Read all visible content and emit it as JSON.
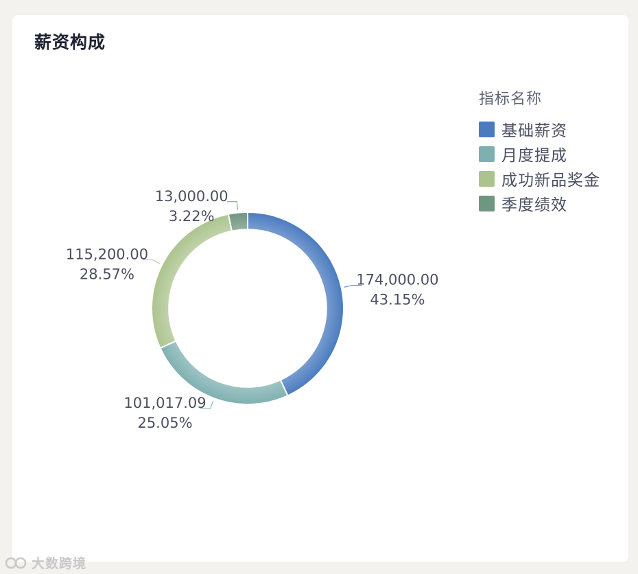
{
  "card": {
    "title": "薪资构成"
  },
  "legend": {
    "title": "指标名称",
    "items": [
      {
        "label": "基础薪资",
        "color": "#4a7bbf"
      },
      {
        "label": "月度提成",
        "color": "#7fb0b1"
      },
      {
        "label": "成功新品奖金",
        "color": "#acc38e"
      },
      {
        "label": "季度绩效",
        "color": "#6f9680"
      }
    ]
  },
  "chart_data": {
    "type": "pie",
    "title": "薪资构成",
    "legend_title": "指标名称",
    "legend_position": "top-right",
    "inner_radius_ratio": 0.82,
    "categories": [
      "基础薪资",
      "月度提成",
      "成功新品奖金",
      "季度绩效"
    ],
    "values": [
      174000.0,
      101017.09,
      115200.0,
      13000.0
    ],
    "value_labels": [
      "174,000.00",
      "101,017.09",
      "115,200.00",
      "13,000.00"
    ],
    "percent_labels": [
      "43.15%",
      "25.05%",
      "28.57%",
      "3.22%"
    ],
    "colors": [
      "#4a7bbf",
      "#7fb0b1",
      "#acc38e",
      "#6f9680"
    ]
  },
  "watermark": {
    "text": "大数跨境"
  }
}
